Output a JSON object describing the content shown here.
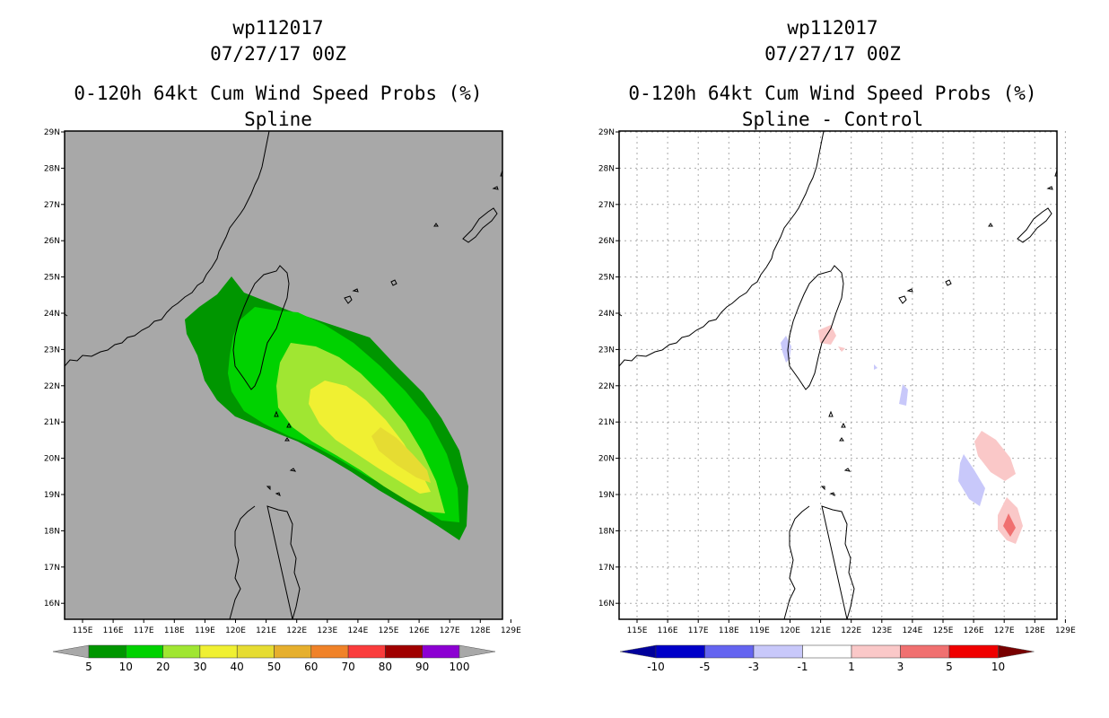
{
  "left": {
    "storm_id": "wp112017",
    "datetime": "07/27/17 00Z",
    "title": "0-120h 64kt Cum Wind Speed Probs (%)",
    "subtitle": "Spline",
    "background_color": "#a8a8a8",
    "colorbar": {
      "labels": [
        "5",
        "10",
        "20",
        "30",
        "40",
        "50",
        "60",
        "70",
        "80",
        "90",
        "100"
      ],
      "colors": [
        "#009600",
        "#00d200",
        "#a0e632",
        "#f0f032",
        "#e6dc32",
        "#e6af2d",
        "#f08228",
        "#fa3c3c",
        "#a00000",
        "#8c00d2"
      ],
      "end_color": "#a8a8a8"
    }
  },
  "right": {
    "storm_id": "wp112017",
    "datetime": "07/27/17 00Z",
    "title": "0-120h 64kt Cum Wind Speed Probs (%)",
    "subtitle": "Spline - Control",
    "background_color": "#ffffff",
    "colorbar": {
      "labels": [
        "-10",
        "-5",
        "-3",
        "-1",
        "1",
        "3",
        "5",
        "10"
      ],
      "colors": [
        "#0000c8",
        "#6464f0",
        "#c8c8fa",
        "#ffffff",
        "#fac8c8",
        "#f07070",
        "#f00000"
      ],
      "end_low": "#00009b",
      "end_high": "#780000"
    }
  },
  "axes": {
    "lat_labels": [
      "29N",
      "28N",
      "27N",
      "26N",
      "25N",
      "24N",
      "23N",
      "22N",
      "21N",
      "20N",
      "19N",
      "18N",
      "17N",
      "16N"
    ],
    "lon_labels": [
      "115E",
      "116E",
      "117E",
      "118E",
      "119E",
      "120E",
      "121E",
      "122E",
      "123E",
      "124E",
      "125E",
      "126E",
      "127E",
      "128E",
      "129E"
    ]
  }
}
